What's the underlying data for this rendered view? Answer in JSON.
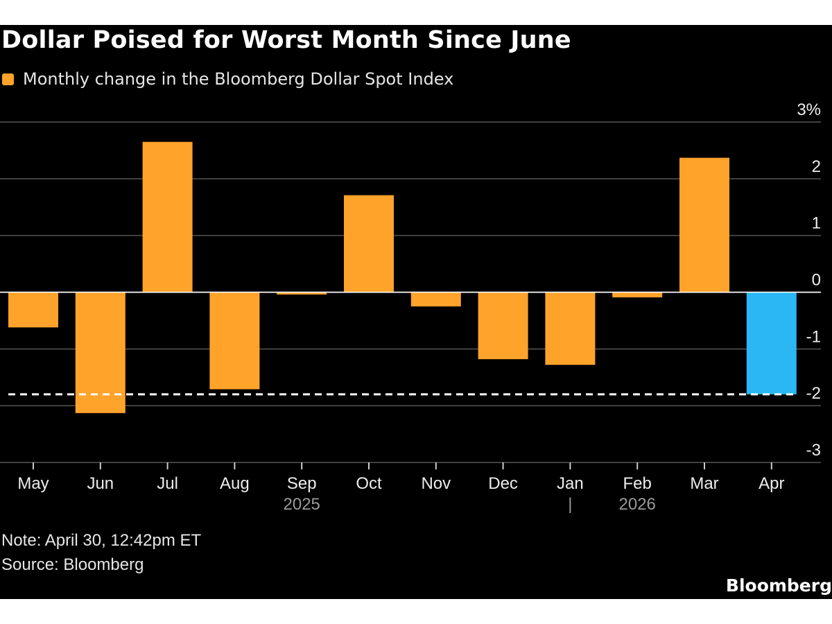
{
  "chart_data": {
    "type": "bar",
    "title": "Dollar Poised for Worst Month Since June",
    "legend": [
      "Monthly change in the Bloomberg Dollar Spot Index"
    ],
    "categories": [
      "May",
      "Jun",
      "Jul",
      "Aug",
      "Sep",
      "Oct",
      "Nov",
      "Dec",
      "Jan",
      "Feb",
      "Mar",
      "Apr"
    ],
    "series": [
      {
        "name": "Monthly change in the Bloomberg Dollar Spot Index",
        "values": [
          -0.62,
          -2.13,
          2.65,
          -1.71,
          -0.04,
          1.71,
          -0.25,
          -1.18,
          -1.28,
          -0.09,
          2.37,
          -1.8
        ]
      }
    ],
    "highlight": {
      "category": "Apr",
      "color": "#2ab7f4"
    },
    "bar_color": "#ffa32b",
    "reference_line": {
      "value": -1.8,
      "style": "dashed",
      "color": "#ffffff"
    },
    "ylim": [
      -3,
      3
    ],
    "y_ticks": [
      {
        "value": 3,
        "label": "3%"
      },
      {
        "value": 2,
        "label": "2"
      },
      {
        "value": 1,
        "label": "1"
      },
      {
        "value": 0,
        "label": "0"
      },
      {
        "value": -1,
        "label": "-1"
      },
      {
        "value": -2,
        "label": "-2"
      },
      {
        "value": -3,
        "label": "-3"
      }
    ],
    "year_labels": [
      {
        "label": "2025",
        "category": "Sep"
      },
      {
        "label": "2026",
        "category": "Feb"
      }
    ],
    "year_separator": {
      "label": "|",
      "category": "Jan"
    },
    "xlabel": "",
    "ylabel": "",
    "grid": true,
    "y_axis_position": "right"
  },
  "footer": {
    "note": "Note: April 30, 12:42pm ET",
    "source": "Source: Bloomberg",
    "logo": "Bloomberg"
  }
}
